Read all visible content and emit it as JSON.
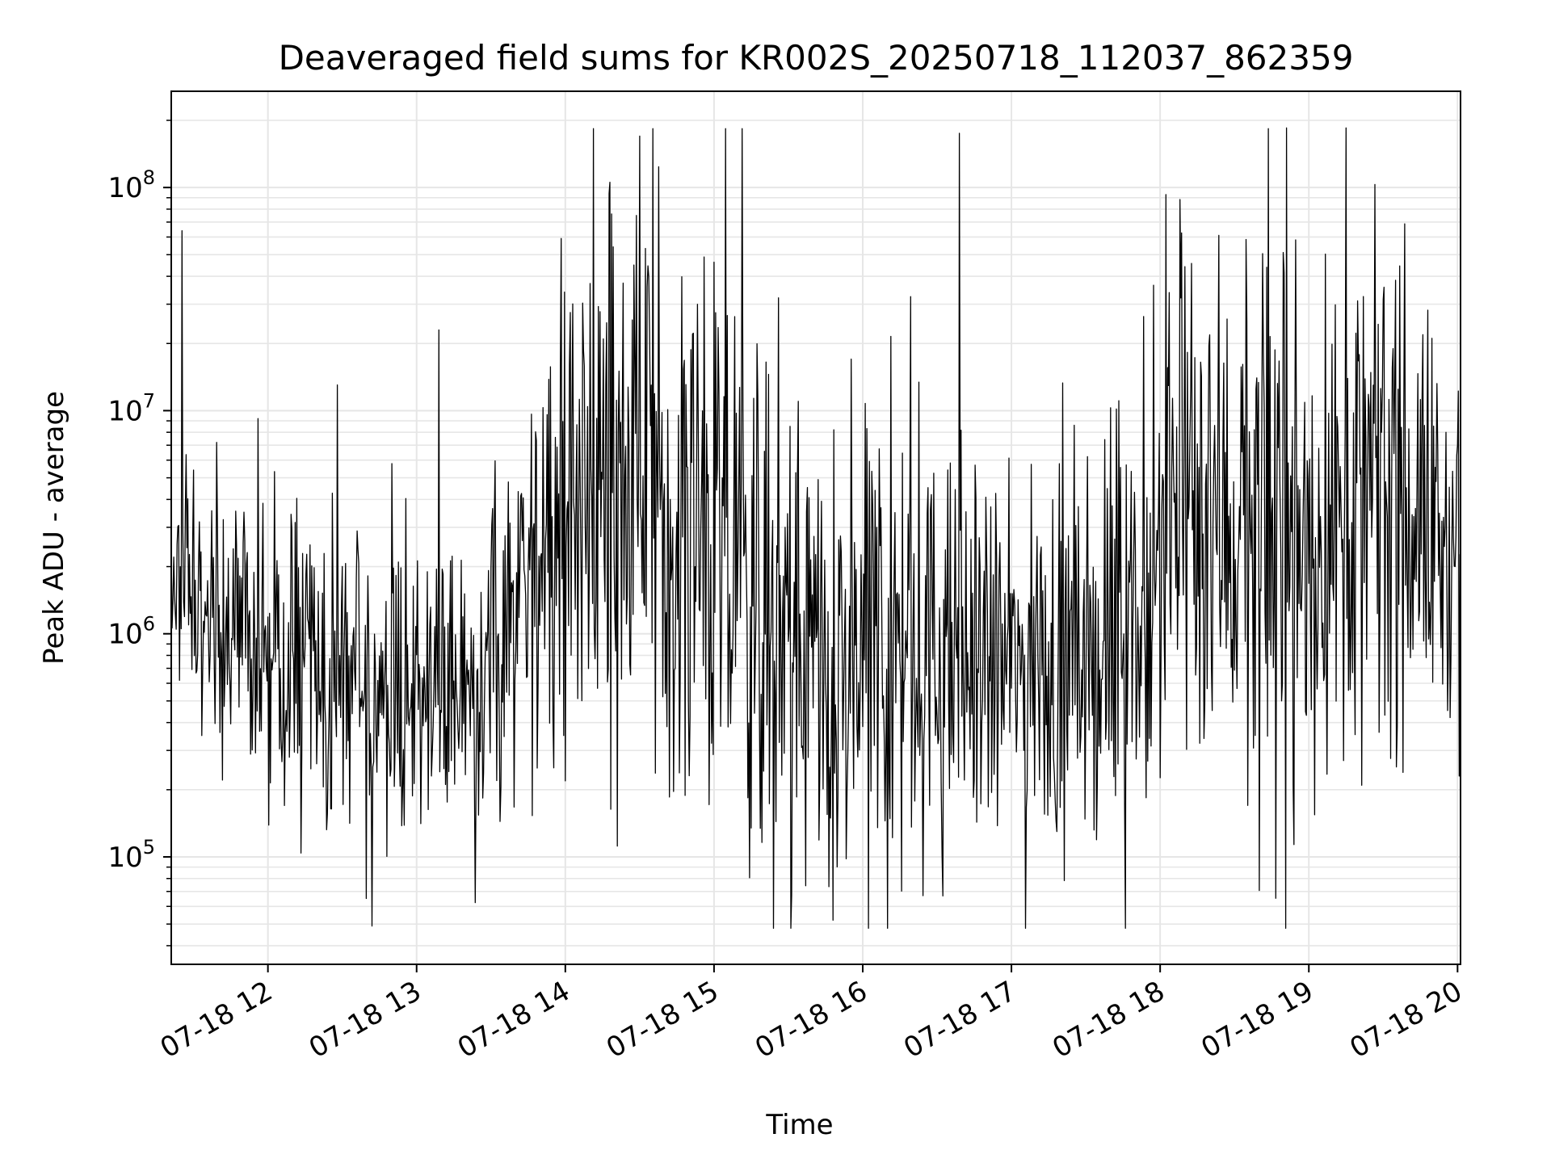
{
  "chart_data": {
    "type": "line",
    "title": "Deaveraged field sums for KR002S_20250718_112037_862359",
    "xlabel": "Time",
    "ylabel": "Peak ADU - average",
    "x_tick_labels": [
      "07-18 12",
      "07-18 13",
      "07-18 14",
      "07-18 15",
      "07-18 16",
      "07-18 17",
      "07-18 18",
      "07-18 19",
      "07-18 20"
    ],
    "x_ticks_hours": [
      12,
      13,
      14,
      15,
      16,
      17,
      18,
      19,
      20
    ],
    "xlim_hours": [
      11.35,
      20.02
    ],
    "y_scale": "log",
    "ylim": [
      33000,
      270000000
    ],
    "y_tick_labels": [
      {
        "base": "10",
        "exp": "5",
        "value": 100000
      },
      {
        "base": "10",
        "exp": "6",
        "value": 1000000
      },
      {
        "base": "10",
        "exp": "7",
        "value": 10000000
      },
      {
        "base": "10",
        "exp": "8",
        "value": 100000000
      }
    ],
    "grid": true,
    "line_color": "#000000",
    "grid_color": "#e6e6e6",
    "sample_interval_seconds": 20,
    "envelope_log10": [
      {
        "hour": 11.35,
        "center": 6.1,
        "spread": 0.45
      },
      {
        "hour": 11.5,
        "center": 6.2,
        "spread": 0.45
      },
      {
        "hour": 12.0,
        "center": 5.85,
        "spread": 0.5
      },
      {
        "hour": 12.5,
        "center": 5.75,
        "spread": 0.55
      },
      {
        "hour": 13.0,
        "center": 5.7,
        "spread": 0.55
      },
      {
        "hour": 13.5,
        "center": 5.75,
        "spread": 0.55
      },
      {
        "hour": 13.7,
        "center": 6.0,
        "spread": 0.6
      },
      {
        "hour": 13.9,
        "center": 6.6,
        "spread": 0.85
      },
      {
        "hour": 14.5,
        "center": 6.75,
        "spread": 0.95
      },
      {
        "hour": 15.0,
        "center": 6.3,
        "spread": 0.95
      },
      {
        "hour": 15.5,
        "center": 6.0,
        "spread": 0.9
      },
      {
        "hour": 15.8,
        "center": 5.6,
        "spread": 0.75
      },
      {
        "hour": 16.1,
        "center": 6.0,
        "spread": 0.85
      },
      {
        "hour": 16.5,
        "center": 5.85,
        "spread": 0.75
      },
      {
        "hour": 17.0,
        "center": 5.85,
        "spread": 0.6
      },
      {
        "hour": 17.5,
        "center": 5.85,
        "spread": 0.6
      },
      {
        "hour": 17.9,
        "center": 6.05,
        "spread": 0.65
      },
      {
        "hour": 18.1,
        "center": 6.6,
        "spread": 0.8
      },
      {
        "hour": 18.5,
        "center": 6.5,
        "spread": 0.95
      },
      {
        "hour": 18.8,
        "center": 6.3,
        "spread": 1.0
      },
      {
        "hour": 19.2,
        "center": 6.55,
        "spread": 0.95
      },
      {
        "hour": 19.6,
        "center": 6.65,
        "spread": 0.9
      },
      {
        "hour": 20.02,
        "center": 6.3,
        "spread": 0.6
      }
    ],
    "notable_points": [
      {
        "hour": 11.42,
        "value": 64000000
      },
      {
        "hour": 13.15,
        "value": 23000000
      },
      {
        "hour": 14.5,
        "value": 170000000
      },
      {
        "hour": 16.65,
        "value": 175000000
      },
      {
        "hour": 18.85,
        "value": 185000000
      },
      {
        "hour": 19.25,
        "value": 185000000
      },
      {
        "hour": 15.8,
        "value": 52000
      },
      {
        "hour": 12.7,
        "value": 49000
      }
    ]
  }
}
